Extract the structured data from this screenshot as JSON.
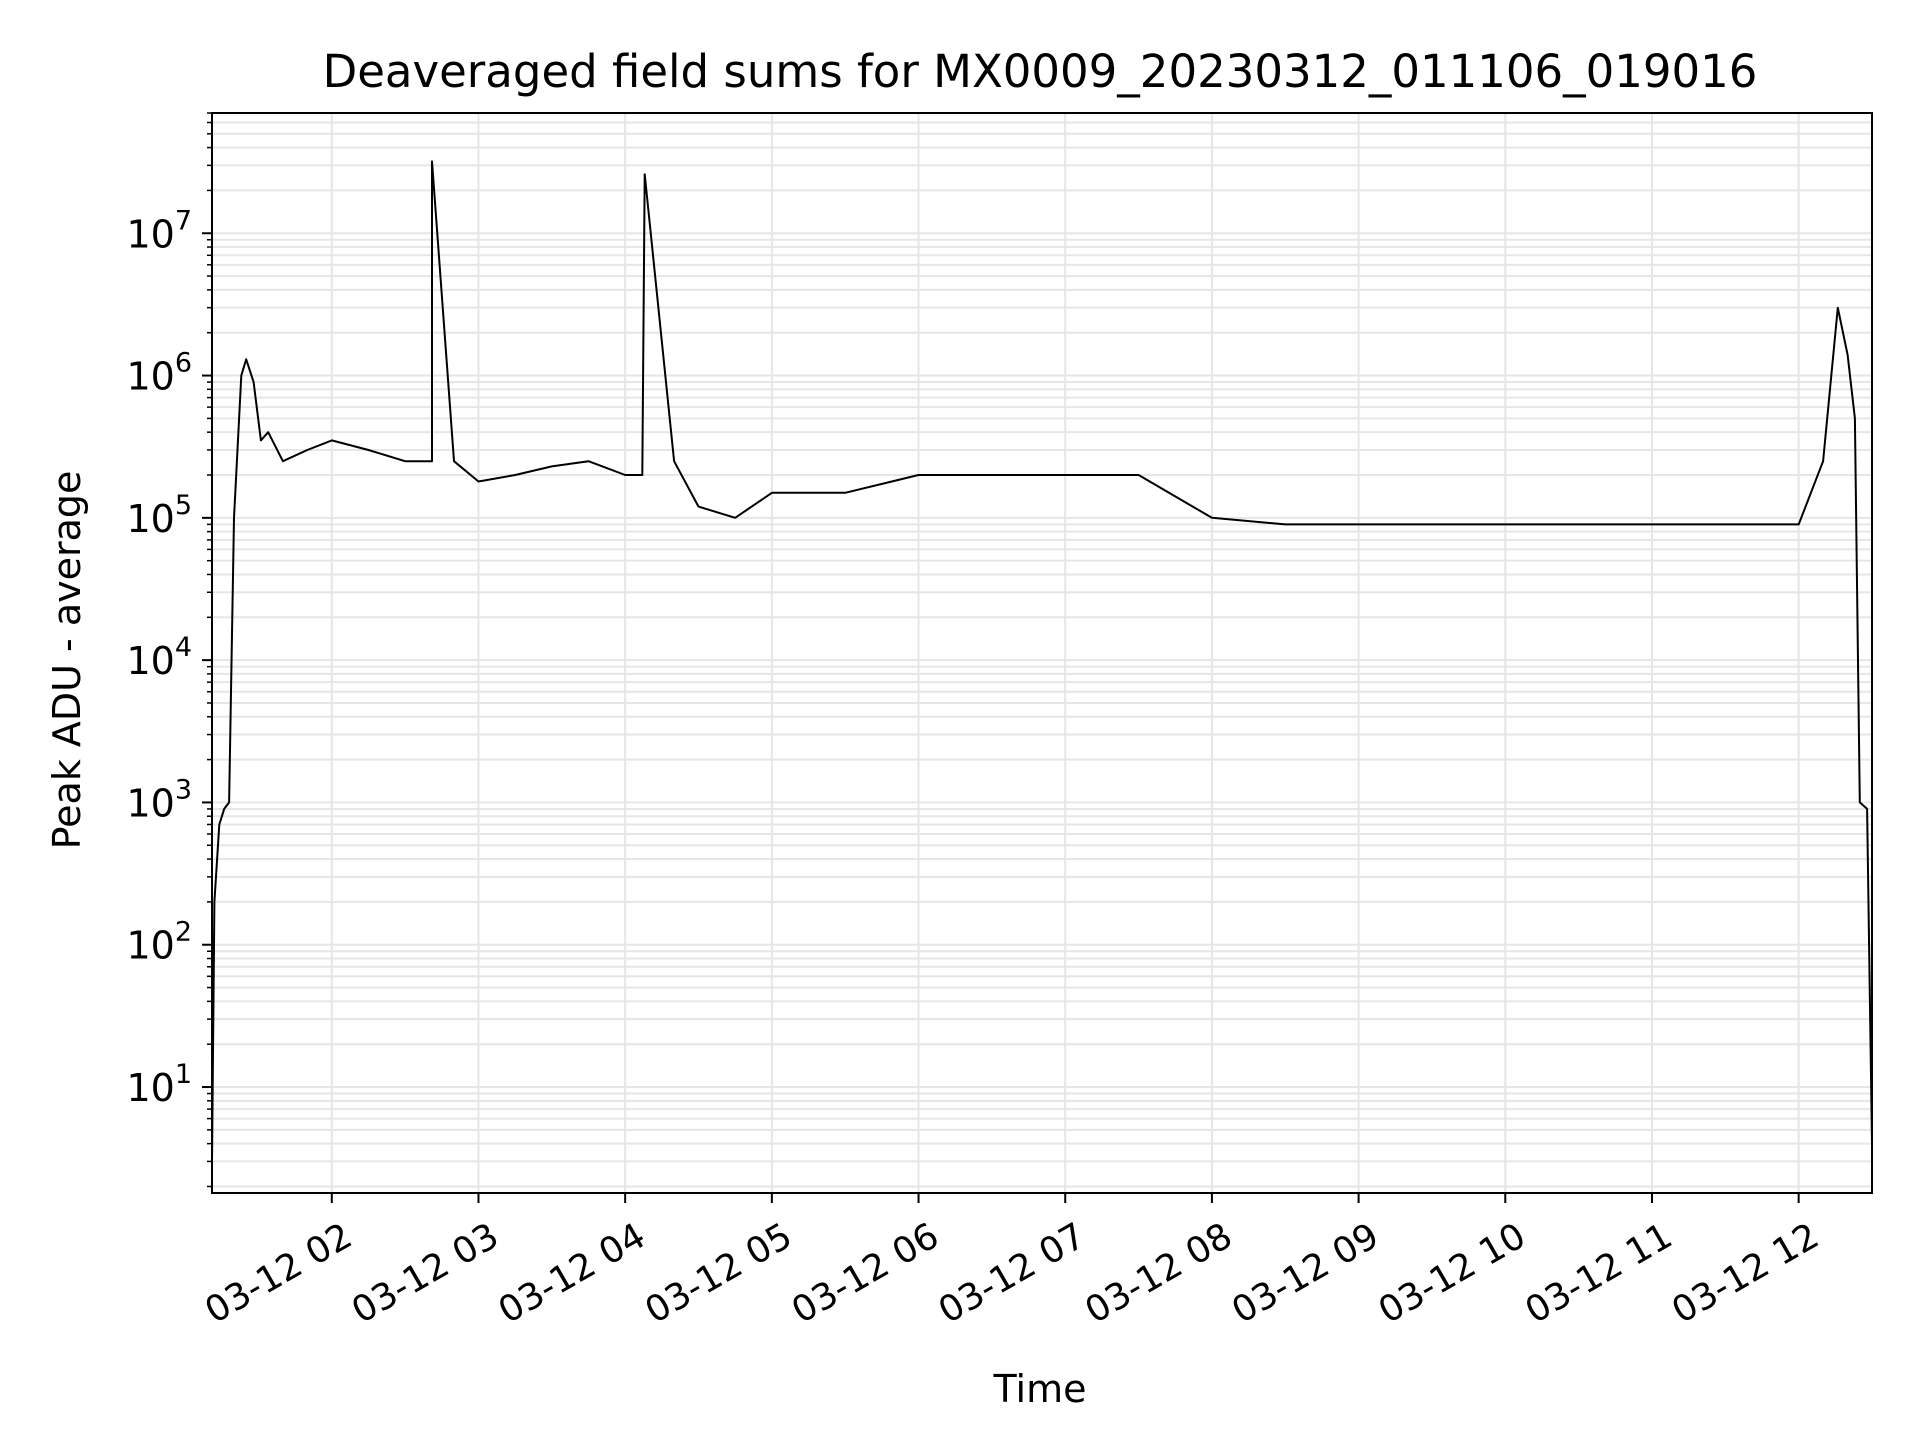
{
  "chart_data": {
    "type": "line",
    "title": "Deaveraged field sums for MX0009_20230312_011106_019016",
    "xlabel": "Time",
    "ylabel": "Peak ADU - average",
    "y_scale": "log",
    "ylim": [
      1.8,
      70000000
    ],
    "xlim": [
      "03-12 01:11",
      "03-12 12:30"
    ],
    "x_tick_labels": [
      "03-12 02",
      "03-12 03",
      "03-12 04",
      "03-12 05",
      "03-12 06",
      "03-12 07",
      "03-12 08",
      "03-12 09",
      "03-12 10",
      "03-12 11",
      "03-12 12"
    ],
    "y_tick_base": "10",
    "y_tick_exponents": [
      "1",
      "2",
      "3",
      "4",
      "5",
      "6",
      "7"
    ],
    "grid": true,
    "legend": "none",
    "line_color": "#000000",
    "grid_color": "#e6e6e6",
    "series": [
      {
        "x": [
          "03-12 01:11",
          "03-12 01:12",
          "03-12 01:14",
          "03-12 01:16",
          "03-12 01:18",
          "03-12 01:20",
          "03-12 01:23",
          "03-12 01:25",
          "03-12 01:28",
          "03-12 01:31",
          "03-12 01:34",
          "03-12 01:40",
          "03-12 01:50",
          "03-12 02:00",
          "03-12 02:15",
          "03-12 02:30",
          "03-12 02:41",
          "03-12 02:41",
          "03-12 02:50",
          "03-12 03:00",
          "03-12 03:15",
          "03-12 03:30",
          "03-12 03:45",
          "03-12 04:00",
          "03-12 04:07",
          "03-12 04:08",
          "03-12 04:20",
          "03-12 04:30",
          "03-12 04:45",
          "03-12 05:00",
          "03-12 05:30",
          "03-12 06:00",
          "03-12 06:30",
          "03-12 07:00",
          "03-12 07:30",
          "03-12 08:00",
          "03-12 08:30",
          "03-12 09:00",
          "03-12 09:30",
          "03-12 10:00",
          "03-12 10:30",
          "03-12 11:00",
          "03-12 11:30",
          "03-12 12:00",
          "03-12 12:10",
          "03-12 12:16",
          "03-12 12:20",
          "03-12 12:23",
          "03-12 12:25",
          "03-12 12:28",
          "03-12 12:30"
        ],
        "y": [
          3,
          200,
          700,
          900,
          1000,
          100000,
          1000000,
          1300000,
          900000,
          350000,
          400000,
          250000,
          300000,
          350000,
          300000,
          250000,
          250000,
          32000000,
          250000,
          180000,
          200000,
          230000,
          250000,
          200000,
          200000,
          26000000,
          250000,
          120000,
          100000,
          150000,
          150000,
          200000,
          200000,
          200000,
          200000,
          100000,
          90000,
          90000,
          90000,
          90000,
          90000,
          90000,
          90000,
          90000,
          250000,
          3000000,
          1400000,
          500000,
          1000,
          900,
          4
        ]
      }
    ]
  }
}
